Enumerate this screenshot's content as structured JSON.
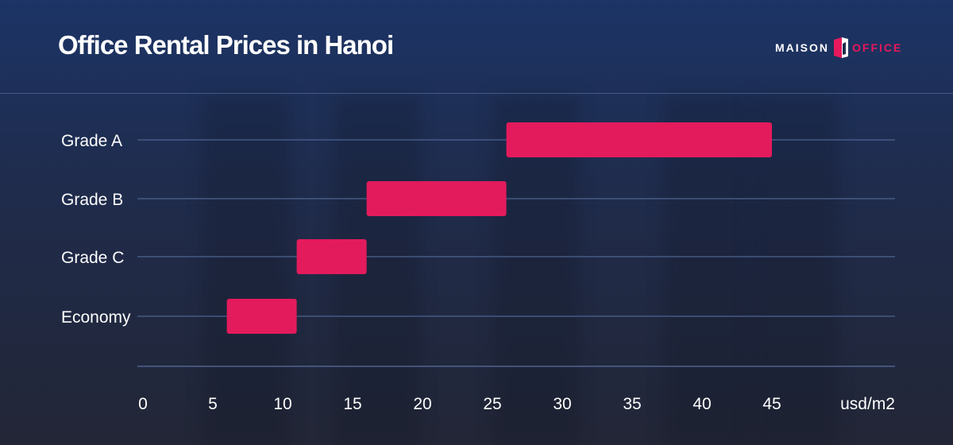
{
  "title": "Office Rental Prices in Hanoi",
  "logo": {
    "left_text": "MAISON",
    "right_text": "OFFICE",
    "left_color": "#ffffff",
    "right_color": "#e8185c"
  },
  "colors": {
    "bar": "#e31b5c",
    "gridline": "#4e6391",
    "background_top": "#1c3466",
    "background_bottom": "#222636"
  },
  "chart_data": {
    "type": "bar",
    "orientation": "horizontal",
    "categories": [
      "Grade A",
      "Grade B",
      "Grade C",
      "Economy"
    ],
    "ranges": [
      {
        "category": "Grade A",
        "low": 26,
        "high": 45
      },
      {
        "category": "Grade B",
        "low": 16,
        "high": 26
      },
      {
        "category": "Grade C",
        "low": 11,
        "high": 16
      },
      {
        "category": "Economy",
        "low": 6,
        "high": 11
      }
    ],
    "x_ticks": [
      "0",
      "5",
      "10",
      "15",
      "20",
      "25",
      "30",
      "35",
      "40",
      "45"
    ],
    "x_unit": "usd/m2",
    "xlim": [
      0,
      45
    ],
    "title": "Office Rental Prices in Hanoi",
    "grid": true,
    "legend": "none"
  }
}
